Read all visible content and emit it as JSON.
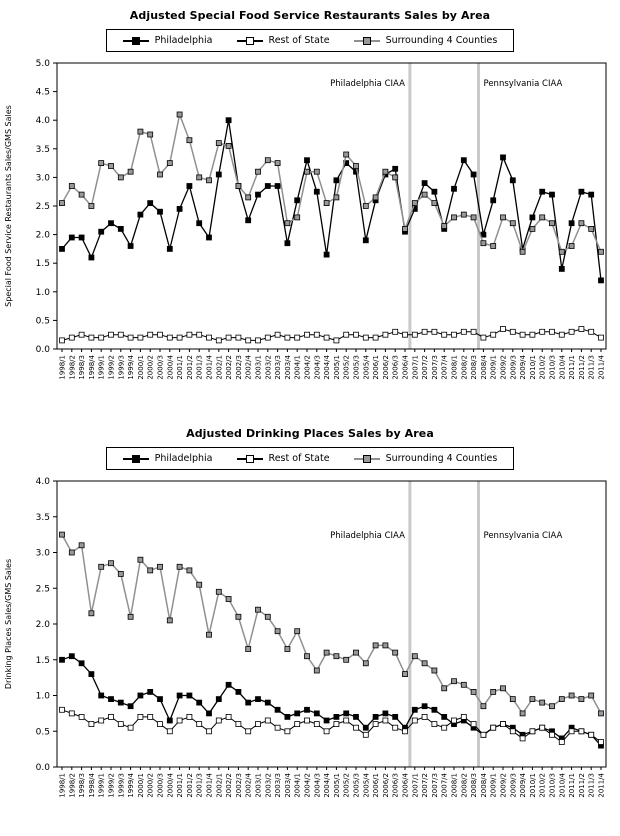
{
  "page": {
    "background": "#ffffff"
  },
  "colors": {
    "axis": "#000000",
    "annotation_line": "#c9c9c9",
    "philadelphia": "#000000",
    "rest_of_state_fill": "#ffffff",
    "surrounding_fill": "#999999",
    "surrounding_line": "#909090"
  },
  "chart_data": [
    {
      "type": "line",
      "title": "Adjusted Special Food Service Restaurants Sales by Area",
      "xlabel": "",
      "ylabel": "Special Food Service Restaurants Sales/GMS Sales",
      "ylim": [
        0.0,
        5.0
      ],
      "ytick_step": 0.5,
      "grid": false,
      "legend_position": "top",
      "categories": [
        "1998/1",
        "1998/2",
        "1998/3",
        "1998/4",
        "1999/1",
        "1999/2",
        "1999/3",
        "1999/4",
        "2000/1",
        "2000/2",
        "2000/3",
        "2000/4",
        "2001/1",
        "2001/2",
        "2001/3",
        "2001/4",
        "2002/1",
        "2002/2",
        "2002/3",
        "2002/4",
        "2003/1",
        "2003/2",
        "2003/3",
        "2003/4",
        "2004/1",
        "2004/2",
        "2004/3",
        "2004/4",
        "2005/1",
        "2005/2",
        "2005/3",
        "2005/4",
        "2006/1",
        "2006/2",
        "2006/3",
        "2006/4",
        "2007/1",
        "2007/2",
        "2007/3",
        "2007/4",
        "2008/1",
        "2008/2",
        "2008/3",
        "2008/4",
        "2009/1",
        "2009/2",
        "2009/3",
        "2009/4",
        "2010/1",
        "2010/2",
        "2010/3",
        "2010/4",
        "2011/1",
        "2011/2",
        "2011/3",
        "2011/4"
      ],
      "series": [
        {
          "name": "Philadelphia",
          "line_color": "#000000",
          "line_width": 1.3,
          "marker_fill": "#000000",
          "values": [
            1.75,
            1.95,
            1.95,
            1.6,
            2.05,
            2.2,
            2.1,
            1.8,
            2.35,
            2.55,
            2.4,
            1.75,
            2.45,
            2.85,
            2.2,
            1.95,
            3.05,
            4.0,
            2.85,
            2.25,
            2.7,
            2.85,
            2.85,
            1.85,
            2.6,
            3.3,
            2.75,
            1.65,
            2.95,
            3.25,
            3.1,
            1.9,
            2.6,
            3.05,
            3.15,
            2.05,
            2.45,
            2.9,
            2.75,
            2.1,
            2.8,
            3.3,
            3.05,
            2.0,
            2.6,
            3.35,
            2.95,
            1.75,
            2.3,
            2.75,
            2.7,
            1.4,
            2.2,
            2.75,
            2.7,
            1.2
          ]
        },
        {
          "name": "Rest of State",
          "line_color": "#000000",
          "line_width": 1.0,
          "marker_fill": "#ffffff",
          "values": [
            0.15,
            0.2,
            0.25,
            0.2,
            0.2,
            0.25,
            0.25,
            0.2,
            0.2,
            0.25,
            0.25,
            0.2,
            0.2,
            0.25,
            0.25,
            0.2,
            0.15,
            0.2,
            0.2,
            0.15,
            0.15,
            0.2,
            0.25,
            0.2,
            0.2,
            0.25,
            0.25,
            0.2,
            0.15,
            0.25,
            0.25,
            0.2,
            0.2,
            0.25,
            0.3,
            0.25,
            0.25,
            0.3,
            0.3,
            0.25,
            0.25,
            0.3,
            0.3,
            0.2,
            0.25,
            0.35,
            0.3,
            0.25,
            0.25,
            0.3,
            0.3,
            0.25,
            0.3,
            0.35,
            0.3,
            0.2
          ]
        },
        {
          "name": "Surrounding 4 Counties",
          "line_color": "#909090",
          "line_width": 1.5,
          "marker_fill": "#999999",
          "values": [
            2.55,
            2.85,
            2.7,
            2.5,
            3.25,
            3.2,
            3.0,
            3.1,
            3.8,
            3.75,
            3.05,
            3.25,
            4.1,
            3.65,
            3.0,
            2.95,
            3.6,
            3.55,
            2.85,
            2.65,
            3.1,
            3.3,
            3.25,
            2.2,
            2.3,
            3.1,
            3.1,
            2.55,
            2.65,
            3.4,
            3.2,
            2.5,
            2.65,
            3.1,
            3.0,
            2.1,
            2.55,
            2.7,
            2.55,
            2.15,
            2.3,
            2.35,
            2.3,
            1.85,
            1.8,
            2.3,
            2.2,
            1.7,
            2.1,
            2.3,
            2.2,
            1.7,
            1.8,
            2.2,
            2.1,
            1.7
          ]
        }
      ],
      "annotations": [
        {
          "label": "Philadelphia CIAA",
          "x_index": 35.5,
          "side": "left",
          "label_y": 4.6
        },
        {
          "label": "Pennsylvania CIAA",
          "x_index": 42.5,
          "side": "right",
          "label_y": 4.6
        }
      ]
    },
    {
      "type": "line",
      "title": "Adjusted Drinking Places Sales by Area",
      "xlabel": "",
      "ylabel": "Drinking Places Sales/GMS Sales",
      "ylim": [
        0.0,
        4.0
      ],
      "ytick_step": 0.5,
      "grid": false,
      "legend_position": "top",
      "categories": [
        "1998/1",
        "1998/2",
        "1998/3",
        "1998/4",
        "1999/1",
        "1999/2",
        "1999/3",
        "1999/4",
        "2000/1",
        "2000/2",
        "2000/3",
        "2000/4",
        "2001/1",
        "2001/2",
        "2001/3",
        "2001/4",
        "2002/1",
        "2002/2",
        "2002/3",
        "2002/4",
        "2003/1",
        "2003/2",
        "2003/3",
        "2003/4",
        "2004/1",
        "2004/2",
        "2004/3",
        "2004/4",
        "2005/1",
        "2005/2",
        "2005/3",
        "2005/4",
        "2006/1",
        "2006/2",
        "2006/3",
        "2006/4",
        "2007/1",
        "2007/2",
        "2007/3",
        "2007/4",
        "2008/1",
        "2008/2",
        "2008/3",
        "2008/4",
        "2009/1",
        "2009/2",
        "2009/3",
        "2009/4",
        "2010/1",
        "2010/2",
        "2010/3",
        "2010/4",
        "2011/1",
        "2011/2",
        "2011/3",
        "2011/4"
      ],
      "series": [
        {
          "name": "Philadelphia",
          "line_color": "#000000",
          "line_width": 1.3,
          "marker_fill": "#000000",
          "values": [
            1.5,
            1.55,
            1.45,
            1.3,
            1.0,
            0.95,
            0.9,
            0.85,
            1.0,
            1.05,
            0.95,
            0.65,
            1.0,
            1.0,
            0.9,
            0.75,
            0.95,
            1.15,
            1.05,
            0.9,
            0.95,
            0.9,
            0.8,
            0.7,
            0.75,
            0.8,
            0.75,
            0.65,
            0.7,
            0.75,
            0.7,
            0.55,
            0.7,
            0.75,
            0.7,
            0.55,
            0.8,
            0.85,
            0.8,
            0.7,
            0.6,
            0.65,
            0.55,
            0.45,
            0.55,
            0.6,
            0.55,
            0.45,
            0.5,
            0.55,
            0.5,
            0.4,
            0.55,
            0.5,
            0.45,
            0.3
          ]
        },
        {
          "name": "Rest of State",
          "line_color": "#000000",
          "line_width": 1.0,
          "marker_fill": "#ffffff",
          "values": [
            0.8,
            0.75,
            0.7,
            0.6,
            0.65,
            0.7,
            0.6,
            0.55,
            0.7,
            0.7,
            0.6,
            0.5,
            0.65,
            0.7,
            0.6,
            0.5,
            0.65,
            0.7,
            0.6,
            0.5,
            0.6,
            0.65,
            0.55,
            0.5,
            0.6,
            0.65,
            0.6,
            0.5,
            0.6,
            0.65,
            0.55,
            0.45,
            0.6,
            0.65,
            0.55,
            0.5,
            0.65,
            0.7,
            0.6,
            0.55,
            0.65,
            0.7,
            0.6,
            0.45,
            0.55,
            0.6,
            0.5,
            0.4,
            0.5,
            0.55,
            0.45,
            0.35,
            0.5,
            0.5,
            0.45,
            0.35
          ]
        },
        {
          "name": "Surrounding 4 Counties",
          "line_color": "#909090",
          "line_width": 1.5,
          "marker_fill": "#999999",
          "values": [
            3.25,
            3.0,
            3.1,
            2.15,
            2.8,
            2.85,
            2.7,
            2.1,
            2.9,
            2.75,
            2.8,
            2.05,
            2.8,
            2.75,
            2.55,
            1.85,
            2.45,
            2.35,
            2.1,
            1.65,
            2.2,
            2.1,
            1.9,
            1.65,
            1.9,
            1.55,
            1.35,
            1.6,
            1.55,
            1.5,
            1.6,
            1.45,
            1.7,
            1.7,
            1.6,
            1.3,
            1.55,
            1.45,
            1.35,
            1.1,
            1.2,
            1.15,
            1.05,
            0.85,
            1.05,
            1.1,
            0.95,
            0.75,
            0.95,
            0.9,
            0.85,
            0.95,
            1.0,
            0.95,
            1.0,
            0.75
          ]
        }
      ],
      "annotations": [
        {
          "label": "Philadelphia CIAA",
          "x_index": 35.5,
          "side": "left",
          "label_y": 3.2
        },
        {
          "label": "Pennsylvania CIAA",
          "x_index": 42.5,
          "side": "right",
          "label_y": 3.2
        }
      ]
    }
  ]
}
